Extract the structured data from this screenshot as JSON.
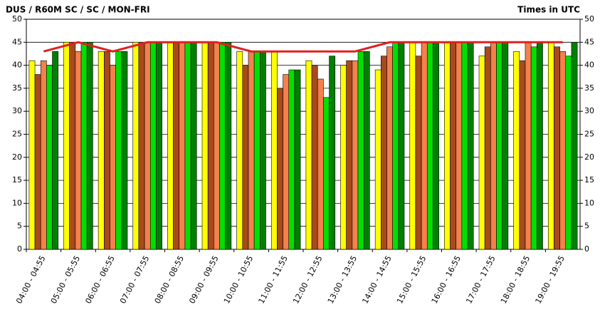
{
  "chart_data": {
    "type": "bar",
    "title": "DUS / R60M SC / SC / MON-FRI",
    "subtitle": "Times in UTC",
    "categories": [
      "04:00 - 04:55",
      "05:00 - 05:55",
      "06:00 - 06:55",
      "07:00 - 07:55",
      "08:00 - 08:55",
      "09:00 - 09:55",
      "10:00 - 10:55",
      "11:00 - 11:55",
      "12:00 - 12:55",
      "13:00 - 13:55",
      "14:00 - 14:55",
      "15:00 - 15:55",
      "16:00 - 16:55",
      "17:00 - 17:55",
      "18:00 - 18:55",
      "19:00 - 19:55"
    ],
    "series": [
      {
        "color": "#ffff00",
        "values": [
          41,
          45,
          43,
          45,
          45,
          45,
          43,
          43,
          41,
          40,
          39,
          45,
          45,
          42,
          43,
          45
        ]
      },
      {
        "color": "#a84a1c",
        "values": [
          38,
          45,
          43,
          45,
          45,
          45,
          40,
          35,
          40,
          41,
          42,
          42,
          45,
          44,
          41,
          44
        ]
      },
      {
        "color": "#f4804c",
        "values": [
          41,
          43,
          40,
          45,
          45,
          45,
          43,
          38,
          37,
          41,
          44,
          45,
          45,
          45,
          45,
          43
        ]
      },
      {
        "color": "#00e000",
        "values": [
          40,
          45,
          43,
          45,
          45,
          45,
          43,
          39,
          33,
          43,
          45,
          45,
          45,
          45,
          44,
          42
        ]
      },
      {
        "color": "#008000",
        "values": [
          43,
          45,
          43,
          45,
          45,
          45,
          43,
          39,
          42,
          43,
          45,
          45,
          45,
          45,
          45,
          45
        ]
      },
      {
        "type": "line",
        "color": "#e02020",
        "values": [
          43,
          45,
          43,
          45,
          45,
          45,
          43,
          43,
          43,
          43,
          45,
          45,
          45,
          45,
          45,
          45
        ]
      }
    ],
    "ylim": [
      0,
      50
    ],
    "yticks": [
      0,
      5,
      10,
      15,
      20,
      25,
      30,
      35,
      40,
      45,
      50
    ],
    "grid": true
  }
}
